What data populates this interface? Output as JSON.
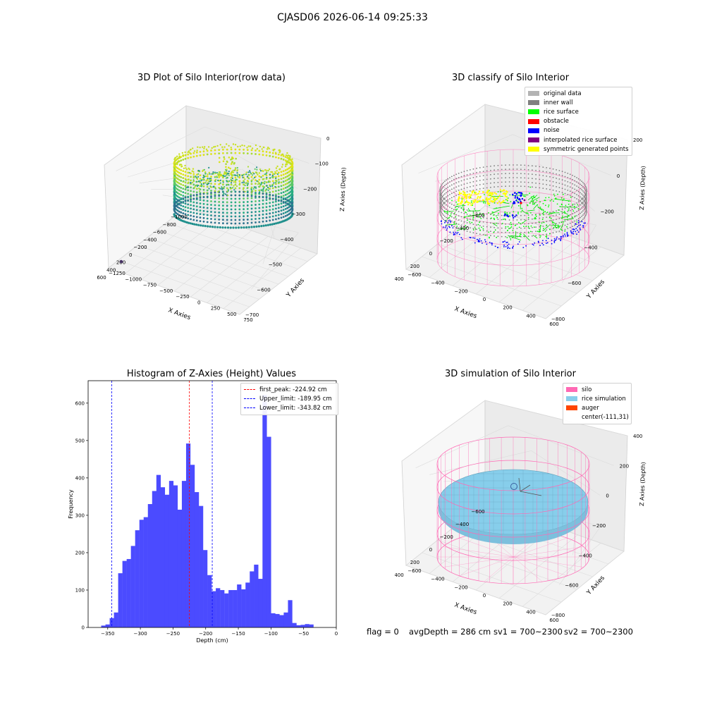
{
  "figure": {
    "suptitle": "CJASD06 2026-06-14 09:25:33"
  },
  "panels": {
    "raw": {
      "title": "3D Plot of Silo Interior(row data)",
      "xlabel": "X Axies",
      "ylabel": "Y Axies",
      "zlabel": "Z Axies (Depth)",
      "xticks": [
        "−1000",
        "−800",
        "−600",
        "−400",
        "−200",
        "0",
        "200",
        "400",
        "600"
      ],
      "yticks": [
        "−1250",
        "−1000",
        "−750",
        "−500",
        "−250",
        "0",
        "250",
        "500",
        "750"
      ],
      "zticks": [
        "0",
        "−100",
        "−200",
        "−300",
        "−400",
        "−500",
        "−600",
        "−700"
      ]
    },
    "classify": {
      "title": "3D classify of Silo Interior",
      "xlabel": "X Axies",
      "ylabel": "Y Axies",
      "zlabel": "Z Axies (Depth)",
      "xticks": [
        "−600",
        "−400",
        "−200",
        "0",
        "200",
        "400"
      ],
      "yticks": [
        "−600",
        "−400",
        "−200",
        "0",
        "200",
        "400",
        "600"
      ],
      "zticks": [
        "200",
        "0",
        "−200",
        "−400",
        "−600",
        "−800"
      ],
      "zticks_top": [
        "400",
        "200"
      ],
      "legend": [
        {
          "label": "original data",
          "color": "#b3b3b3"
        },
        {
          "label": "inner wall",
          "color": "#808080"
        },
        {
          "label": "rice surface",
          "color": "#00ff00"
        },
        {
          "label": "obstacle",
          "color": "#ff0000"
        },
        {
          "label": "noise",
          "color": "#0000ff"
        },
        {
          "label": "interpolated rice surface",
          "color": "#800080"
        },
        {
          "label": "symmetric generated points",
          "color": "#ffff00"
        }
      ],
      "colors": {
        "wall": "#ff69b4"
      }
    },
    "simulation": {
      "title": "3D simulation of Silo Interior",
      "xlabel": "X Axies",
      "ylabel": "Y Axies",
      "zlabel": "Z Axies (Depth)",
      "xticks": [
        "−600",
        "−400",
        "−200",
        "0",
        "200",
        "400"
      ],
      "yticks": [
        "−600",
        "−400",
        "−200",
        "0",
        "200",
        "400",
        "600"
      ],
      "zticks": [
        "400",
        "200",
        "0",
        "−200",
        "−400",
        "−600",
        "−800"
      ],
      "legend": [
        {
          "label": "silo",
          "color": "#ff69b4"
        },
        {
          "label": "rice simulation",
          "color": "#87ceeb"
        },
        {
          "label": "auger",
          "color": "#ff4500"
        },
        {
          "label": "center(-111,31)",
          "color": ""
        }
      ],
      "colors": {
        "rice": "#87ceeb",
        "wall": "#ff69b4"
      }
    }
  },
  "status": {
    "flag": "flag = 0",
    "avg_depth": "avgDepth = 286 cm",
    "sv1": "sv1 = 700~2300",
    "sv2": "sv2 = 700~2300"
  },
  "chart_data": {
    "type": "bar",
    "title": "Histogram of Z-Axies (Height) Values",
    "xlabel": "Depth (cm)",
    "ylabel": "Frequency",
    "xlim": [
      -380,
      0
    ],
    "ylim": [
      0,
      660
    ],
    "bin_start": -360,
    "bin_width": 6.5,
    "values": [
      5,
      8,
      25,
      40,
      145,
      178,
      183,
      218,
      260,
      288,
      295,
      330,
      365,
      408,
      375,
      355,
      392,
      380,
      315,
      392,
      492,
      435,
      362,
      325,
      207,
      140,
      97,
      105,
      100,
      91,
      100,
      100,
      115,
      102,
      120,
      150,
      168,
      130,
      622,
      510,
      38,
      36,
      33,
      40,
      73,
      12,
      6,
      7,
      9,
      8
    ],
    "xticks": [
      -350,
      -300,
      -250,
      -200,
      -150,
      -100,
      -50,
      0
    ],
    "yticks": [
      0,
      100,
      200,
      300,
      400,
      500,
      600
    ],
    "bar_color": "#4b4bff",
    "vlines": [
      {
        "label": "first_peak: -224.92 cm",
        "x": -224.92,
        "color": "#ff0000"
      },
      {
        "label": "Upper_limit: -189.95 cm",
        "x": -189.95,
        "color": "#0000ff"
      },
      {
        "label": "Lower_limit: -343.82 cm",
        "x": -343.82,
        "color": "#0000ff"
      }
    ],
    "legend_position": "upper right"
  }
}
